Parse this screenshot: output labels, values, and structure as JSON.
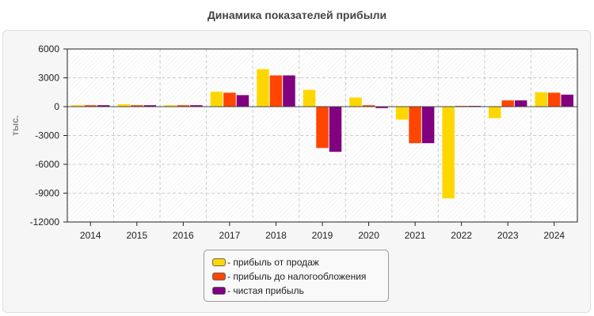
{
  "chart_data": {
    "type": "bar",
    "title": "Динамика показателей прибыли",
    "ylabel": "тыс.",
    "xlabel": "",
    "ylim": [
      -12000,
      6000
    ],
    "yticks": [
      6000,
      3000,
      0,
      -3000,
      -6000,
      -9000,
      -12000
    ],
    "grid": true,
    "legend_position": "bottom-center",
    "categories": [
      "2014",
      "2015",
      "2016",
      "2017",
      "2018",
      "2019",
      "2020",
      "2021",
      "2022",
      "2023",
      "2024"
    ],
    "series": [
      {
        "name": "- прибыль от продаж",
        "color": "#FFD700",
        "values": [
          150,
          250,
          150,
          1550,
          3900,
          1750,
          950,
          -1350,
          -9550,
          -1200,
          1500
        ]
      },
      {
        "name": "- прибыль до налогообложения",
        "color": "#FF4500",
        "values": [
          150,
          150,
          150,
          1450,
          3250,
          -4300,
          150,
          -3800,
          80,
          650,
          1450
        ]
      },
      {
        "name": "- чистая прибыль",
        "color": "#800080",
        "values": [
          150,
          150,
          150,
          1200,
          3250,
          -4700,
          -150,
          -3800,
          80,
          650,
          1250
        ]
      }
    ]
  }
}
